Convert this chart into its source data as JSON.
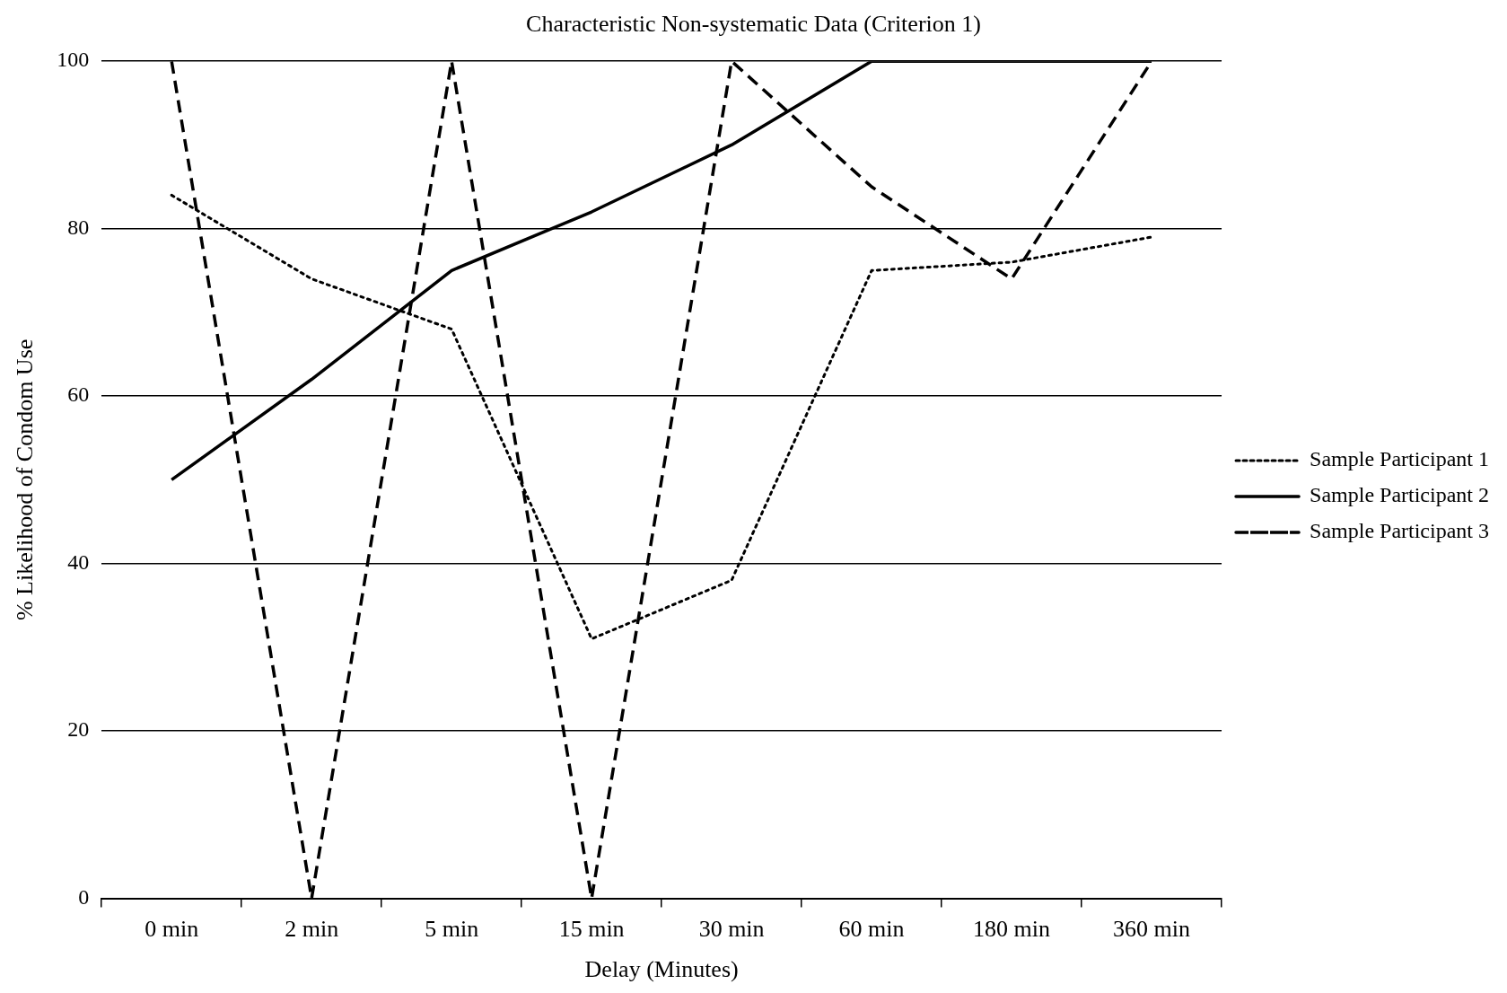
{
  "chart_data": {
    "type": "line",
    "title": "Characteristic Non-systematic Data (Criterion 1)",
    "xlabel": "Delay (Minutes)",
    "ylabel": "% Likelihood of Condom Use",
    "categories": [
      "0 min",
      "2 min",
      "5 min",
      "15 min",
      "30 min",
      "60 min",
      "180 min",
      "360 min"
    ],
    "series": [
      {
        "name": "Sample Participant 1",
        "color": "#000000",
        "line_style": "dotted",
        "values": [
          84,
          74,
          68,
          31,
          38,
          75,
          76,
          79
        ]
      },
      {
        "name": "Sample Participant 2",
        "color": "#000000",
        "line_style": "solid",
        "values": [
          50,
          62,
          75,
          82,
          90,
          100,
          100,
          100
        ]
      },
      {
        "name": "Sample Participant 3",
        "color": "#000000",
        "line_style": "dashed",
        "values": [
          100,
          0,
          100,
          0,
          100,
          85,
          74,
          100
        ]
      }
    ],
    "ylim": [
      0,
      100
    ],
    "yticks": [
      0,
      20,
      40,
      60,
      80,
      100
    ],
    "grid": "y",
    "legend": "right",
    "marker": "none"
  }
}
